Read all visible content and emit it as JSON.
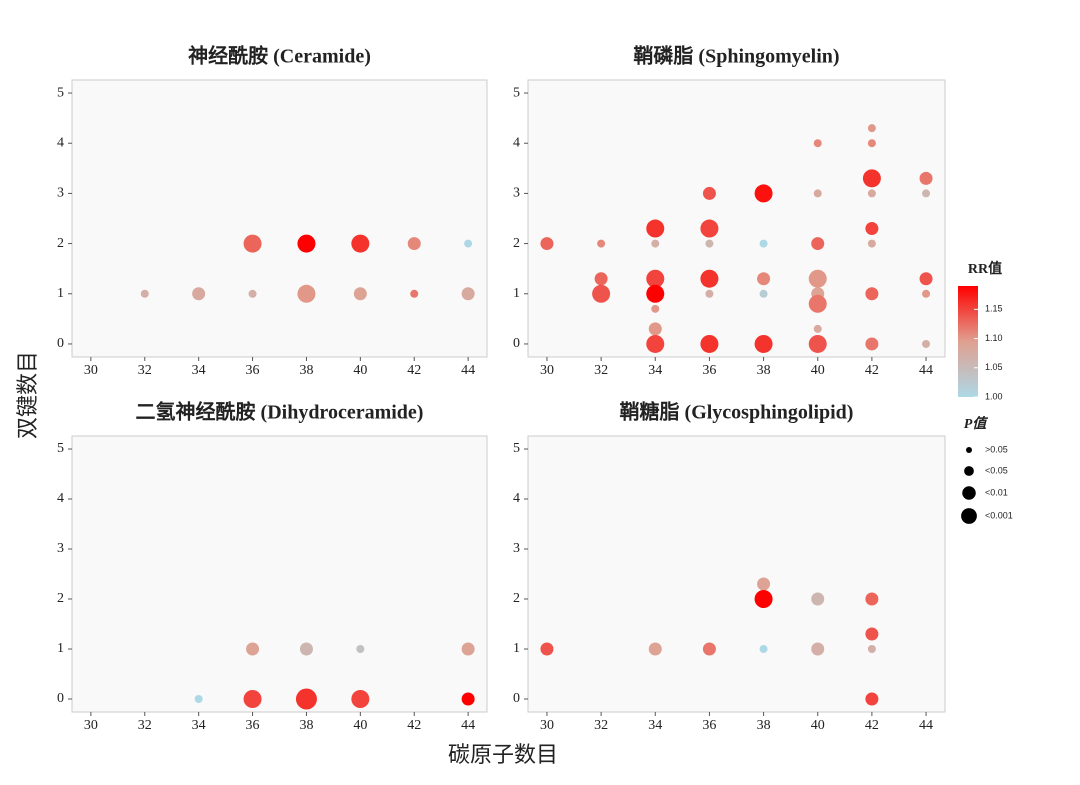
{
  "chart_data": [
    {
      "type": "scatter",
      "title": "神经酰胺 (Ceramide)",
      "xlim": [
        29.3,
        44.7
      ],
      "ylim": [
        -0.26,
        5.26
      ],
      "xticks": [
        30,
        32,
        34,
        36,
        38,
        40,
        42,
        44
      ],
      "yticks": [
        0,
        1,
        2,
        3,
        4,
        5
      ],
      "x": [
        32,
        34,
        36,
        36,
        38,
        38,
        40,
        40,
        42,
        42,
        44,
        44
      ],
      "y": [
        1,
        1,
        1,
        2,
        2,
        1,
        2,
        1,
        2,
        1,
        2,
        1
      ],
      "rr": [
        1.07,
        1.08,
        1.07,
        1.13,
        1.19,
        1.1,
        1.16,
        1.09,
        1.11,
        1.12,
        1.0,
        1.08
      ],
      "p": [
        ">0.05",
        "<0.05",
        ">0.05",
        "<0.01",
        "<0.01",
        "<0.01",
        "<0.01",
        "<0.05",
        "<0.05",
        ">0.05",
        ">0.05",
        "<0.05"
      ]
    },
    {
      "type": "scatter",
      "title": "鞘磷脂 (Sphingomyelin)",
      "xlim": [
        29.3,
        44.7
      ],
      "ylim": [
        -0.26,
        5.26
      ],
      "xticks": [
        30,
        32,
        34,
        36,
        38,
        40,
        42,
        44
      ],
      "yticks": [
        0,
        1,
        2,
        3,
        4,
        5
      ],
      "x": [
        30,
        32,
        32,
        32,
        34,
        34,
        34,
        34,
        34,
        34,
        34,
        36,
        36,
        36,
        36,
        36,
        36,
        38,
        38,
        38,
        38,
        38,
        40,
        40,
        40,
        40,
        40,
        40,
        40,
        40,
        42,
        42,
        42,
        42,
        42,
        42,
        42,
        42,
        44,
        44,
        44,
        44,
        44
      ],
      "y": [
        2,
        2,
        1.3,
        1,
        2.3,
        2,
        1.3,
        1,
        0.7,
        0.3,
        0,
        3,
        2.3,
        2,
        1.3,
        1,
        0,
        3,
        2,
        1.3,
        1,
        0,
        4,
        3,
        2,
        1.3,
        1,
        0.8,
        0.3,
        0,
        4.3,
        4,
        3.3,
        3,
        2.3,
        2,
        1,
        0,
        3.3,
        3,
        1.3,
        1,
        0
      ],
      "rr": [
        1.13,
        1.11,
        1.13,
        1.14,
        1.16,
        1.07,
        1.15,
        1.19,
        1.1,
        1.1,
        1.15,
        1.14,
        1.15,
        1.06,
        1.16,
        1.07,
        1.16,
        1.18,
        1.0,
        1.11,
        1.02,
        1.16,
        1.11,
        1.08,
        1.13,
        1.1,
        1.09,
        1.12,
        1.08,
        1.14,
        1.1,
        1.11,
        1.16,
        1.08,
        1.15,
        1.08,
        1.13,
        1.12,
        1.12,
        1.06,
        1.14,
        1.1,
        1.07
      ],
      "p": [
        "<0.05",
        ">0.05",
        "<0.05",
        "<0.01",
        "<0.01",
        ">0.05",
        "<0.01",
        "<0.01",
        ">0.05",
        "<0.05",
        "<0.01",
        "<0.05",
        "<0.01",
        ">0.05",
        "<0.01",
        ">0.05",
        "<0.01",
        "<0.01",
        ">0.05",
        "<0.05",
        ">0.05",
        "<0.01",
        ">0.05",
        ">0.05",
        "<0.05",
        "<0.01",
        "<0.05",
        "<0.01",
        ">0.05",
        "<0.01",
        ">0.05",
        ">0.05",
        "<0.01",
        ">0.05",
        "<0.05",
        ">0.05",
        "<0.05",
        "<0.05",
        "<0.05",
        ">0.05",
        "<0.05",
        ">0.05",
        ">0.05"
      ]
    },
    {
      "type": "scatter",
      "title": "二氢神经酰胺 (Dihydroceramide)",
      "xlim": [
        29.3,
        44.7
      ],
      "ylim": [
        -0.26,
        5.26
      ],
      "xticks": [
        30,
        32,
        34,
        36,
        38,
        40,
        42,
        44
      ],
      "yticks": [
        0,
        1,
        2,
        3,
        4,
        5
      ],
      "x": [
        34,
        36,
        36,
        38,
        38,
        40,
        40,
        44,
        44
      ],
      "y": [
        0,
        1,
        0,
        1,
        0,
        1,
        0,
        1,
        0
      ],
      "rr": [
        1.0,
        1.09,
        1.15,
        1.06,
        1.16,
        1.04,
        1.15,
        1.09,
        1.19
      ],
      "p": [
        ">0.05",
        "<0.05",
        "<0.01",
        "<0.05",
        "<0.001",
        ">0.05",
        "<0.01",
        "<0.05",
        "<0.05"
      ]
    },
    {
      "type": "scatter",
      "title": "鞘糖脂 (Glycosphingolipid)",
      "xlim": [
        29.3,
        44.7
      ],
      "ylim": [
        -0.26,
        5.26
      ],
      "xticks": [
        30,
        32,
        34,
        36,
        38,
        40,
        42,
        44
      ],
      "yticks": [
        0,
        1,
        2,
        3,
        4,
        5
      ],
      "x": [
        30,
        34,
        36,
        38,
        38,
        38,
        40,
        40,
        42,
        42,
        42,
        42
      ],
      "y": [
        1,
        1,
        1,
        2.3,
        2,
        1,
        2,
        1,
        2,
        1.3,
        1,
        0
      ],
      "rr": [
        1.14,
        1.09,
        1.12,
        1.09,
        1.19,
        1.0,
        1.06,
        1.07,
        1.13,
        1.14,
        1.07,
        1.15
      ],
      "p": [
        "<0.05",
        "<0.05",
        "<0.05",
        "<0.05",
        "<0.01",
        ">0.05",
        "<0.05",
        "<0.05",
        "<0.05",
        "<0.05",
        ">0.05",
        "<0.05"
      ]
    }
  ],
  "xlabel": "碳原子数目",
  "ylabel": "双键数目",
  "color_legend": {
    "title": "RR值",
    "lim": [
      1.0,
      1.19
    ],
    "colors": [
      "#add8e6",
      "#e0a090",
      "#ff0000"
    ],
    "ticks": [
      {
        "value": 1.0,
        "label": "1.00"
      },
      {
        "value": 1.05,
        "label": "1.05"
      },
      {
        "value": 1.1,
        "label": "1.10"
      },
      {
        "value": 1.15,
        "label": "1.15"
      }
    ]
  },
  "size_legend": {
    "title": "P值",
    "labels": [
      ">0.05",
      "<0.05",
      "<0.01",
      "<0.001"
    ]
  }
}
